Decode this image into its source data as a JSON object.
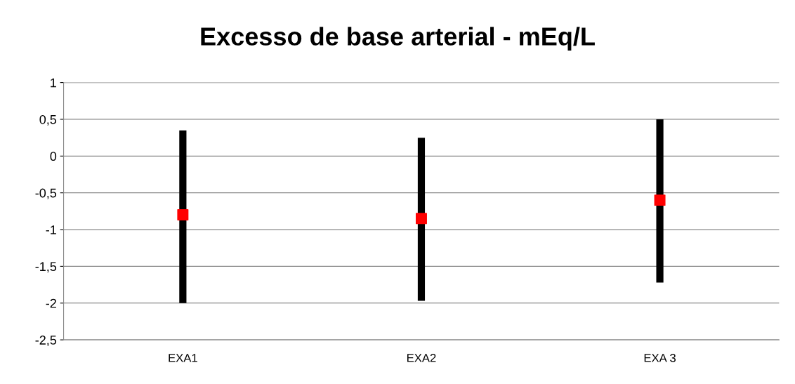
{
  "chart_data": {
    "type": "bar",
    "title": "Excesso de base arterial - mEq/L",
    "categories": [
      "EXA1",
      "EXA2",
      "EXA 3"
    ],
    "series": [
      {
        "color": "#000000",
        "base": [
          -2,
          -1.97,
          -1.72
        ],
        "values": [
          2.35,
          2.22,
          2.22
        ]
      },
      {
        "type": "scatter",
        "color": "#ff0000",
        "marker": "square",
        "values": [
          -0.8,
          -0.85,
          -0.6
        ]
      }
    ],
    "ylim": [
      -2.5,
      1
    ],
    "yticks": [
      {
        "value": -2.5,
        "label": "-2,5"
      },
      -2,
      {
        "value": -1.5,
        "label": "-1,5"
      },
      -1,
      {
        "value": -0.5,
        "label": "-0,5"
      },
      0,
      {
        "value": 0.5,
        "label": "0,5"
      },
      1
    ],
    "grid": "y",
    "legend": false
  }
}
